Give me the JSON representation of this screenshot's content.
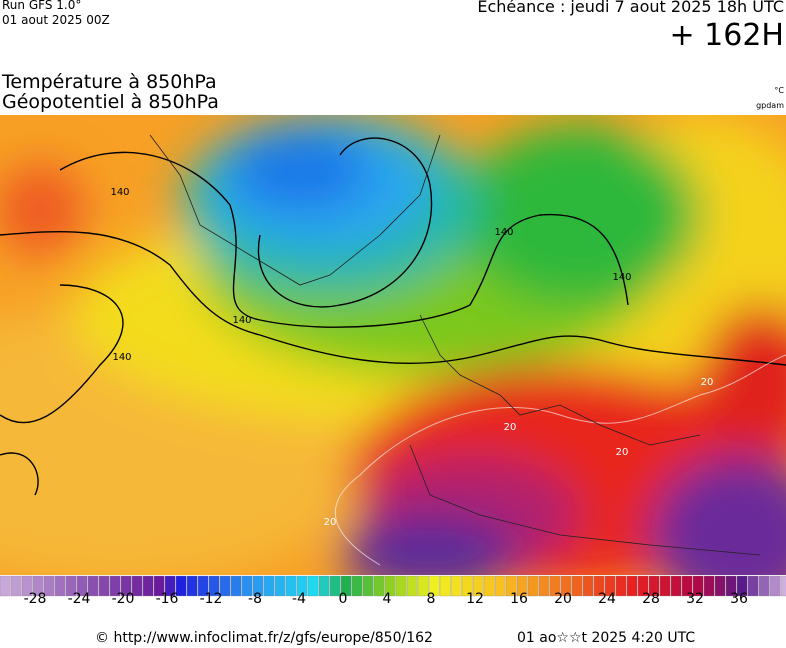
{
  "header": {
    "run": "Run GFS 1.0°",
    "run_date": "01 aout 2025 00Z",
    "echeance": "Echéance : jeudi 7 aout 2025 18h UTC",
    "forecast": "+ 162H",
    "title_line1": "Température à 850hPa",
    "title_line2": "Géopotentiel à 850hPa",
    "unit_temp": "°C",
    "unit_geo": "gpdam"
  },
  "map": {
    "contour_labels": [
      "140",
      "140",
      "140",
      "140",
      "140",
      "20",
      "20",
      "20",
      "20"
    ]
  },
  "colorbar": {
    "labels": [
      "-28",
      "-24",
      "-20",
      "-16",
      "-12",
      "-8",
      "-4",
      "0",
      "4",
      "8",
      "12",
      "16",
      "20",
      "24",
      "28",
      "32",
      "36"
    ]
  },
  "footer": {
    "url": "© http://www.infoclimat.fr/z/gfs/europe/850/162",
    "timestamp": "01 ao☆☆t 2025  4:20 UTC"
  }
}
